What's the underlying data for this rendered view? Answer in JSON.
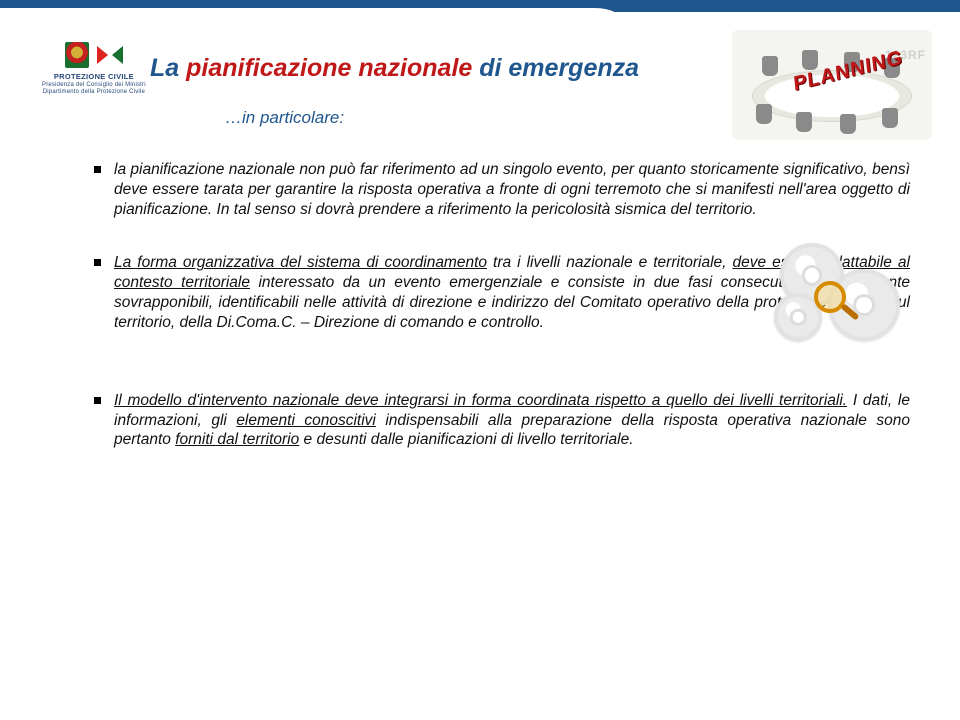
{
  "colors": {
    "top_bar": "#1f568e",
    "title_blue": "#1f568e",
    "title_red": "#c01818",
    "body_text": "#111111",
    "background": "#ffffff",
    "watermark": "#cfd2ce"
  },
  "typography": {
    "title_fontsize_pt": 19,
    "subtitle_fontsize_pt": 13,
    "body_fontsize_pt": 11.5,
    "italic": true,
    "justify": true
  },
  "logo": {
    "line1": "PROTEZIONE CIVILE",
    "line2": "Presidenza del Consiglio dei Ministri",
    "line3": "Dipartimento della Protezione Civile"
  },
  "title": {
    "part_blue1": "La ",
    "part_red": "pianificazione nazionale",
    "part_blue2": " di emergenza"
  },
  "subtitle": "…in particolare:",
  "hero_image": {
    "description": "planning-meeting-table",
    "watermark": "123RF",
    "overlay_word": "PLANNING"
  },
  "side_image": {
    "description": "gears-with-magnifier-icon"
  },
  "bullets": [
    {
      "html": "la pianificazione nazionale non può far riferimento ad un singolo evento, per quanto storicamente significativo, bensì deve essere tarata per garantire la risposta operativa a fronte di ogni terremoto che si manifesti nell'area oggetto di pianificazione. In tal senso si dovrà prendere a riferimento la pericolosità sismica del territorio."
    },
    {
      "html": "<u>La forma organizzativa del sistema di coordinamento</u> tra i livelli nazionale e territoriale, <u>deve essere adattabile al contesto territoriale</u> interessato da un evento emergenziale e consiste in due fasi consecutive e brevemente sovrapponibili, identificabili nelle attività di direzione e indirizzo del Comitato operativo della protezione civile e, sul territorio, della Di.Coma.C. – Direzione di comando e controllo."
    },
    {
      "html": "<u>Il modello d'intervento nazionale deve integrarsi in forma coordinata rispetto a quello dei livelli territoriali.</u> I dati, le informazioni, gli <u>elementi conoscitivi</u> indispensabili alla preparazione della risposta operativa nazionale sono pertanto <u>forniti dal territorio</u> e desunti dalle pianificazioni di livello territoriale."
    }
  ]
}
